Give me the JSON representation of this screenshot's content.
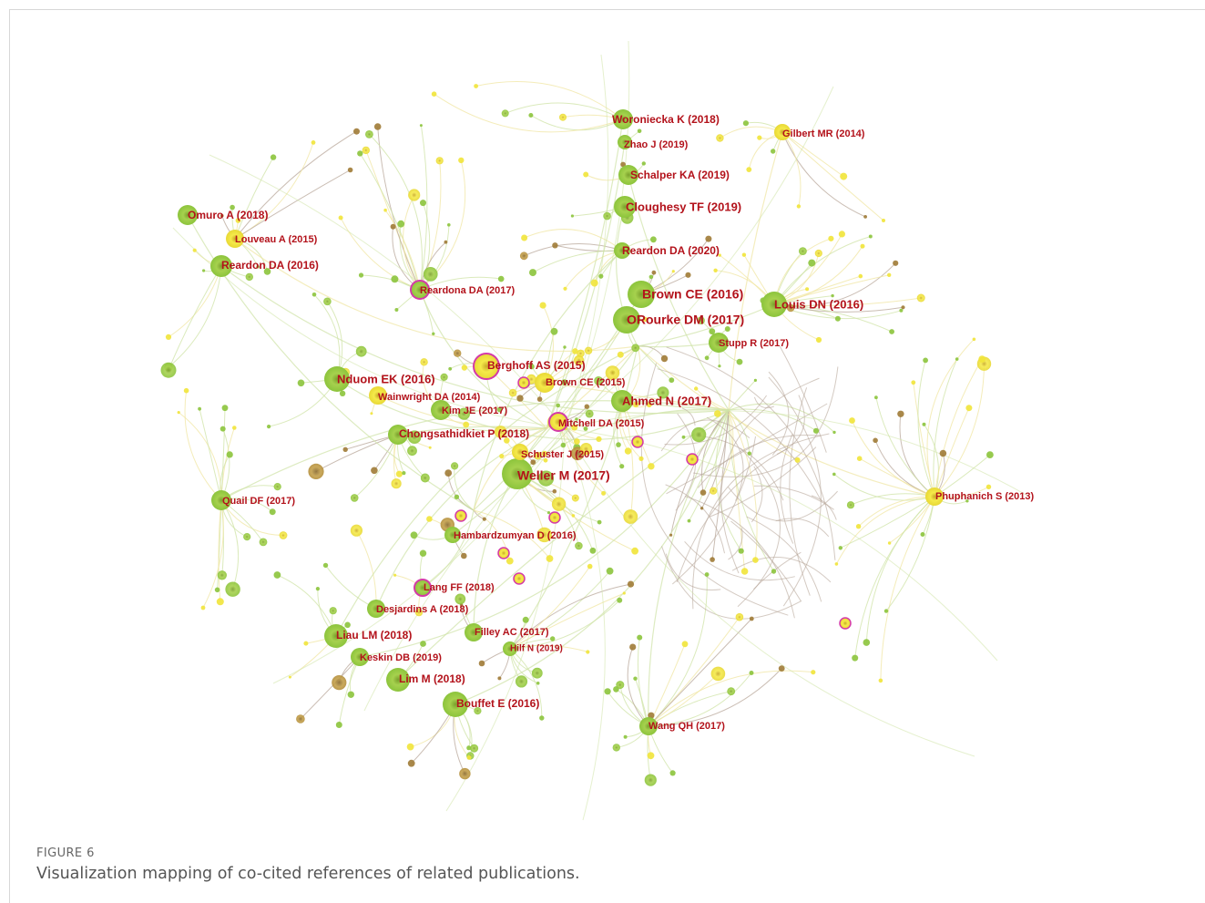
{
  "figure": {
    "label": "FIGURE 6",
    "caption": "Visualization mapping of co-cited references of related publications."
  },
  "colors": {
    "label": "#b3121b",
    "green": "#8cc43c",
    "yellow": "#f1e43a",
    "brown": "#a07b36",
    "magenta": "#d43aa7",
    "edge_green": "#cfe3a6",
    "edge_yellow": "#f0e6a2",
    "edge_brown": "#b8a79a"
  },
  "nodes": [
    {
      "id": "weller_2017",
      "label": "Weller M (2017)",
      "color": "green"
    },
    {
      "id": "brown_ce_2016",
      "label": "Brown CE (2016)",
      "color": "green"
    },
    {
      "id": "orourke_2017",
      "label": "ORourke DM (2017)",
      "color": "green"
    },
    {
      "id": "louis_2016",
      "label": "Louis DN (2016)",
      "color": "green"
    },
    {
      "id": "woroniecka_2018",
      "label": "Woroniecka K (2018)",
      "color": "green"
    },
    {
      "id": "zhao_2019",
      "label": "Zhao J (2019)",
      "color": "green"
    },
    {
      "id": "gilbert_2014",
      "label": "Gilbert MR (2014)",
      "color": "yellow"
    },
    {
      "id": "schalper_2019",
      "label": "Schalper KA (2019)",
      "color": "green"
    },
    {
      "id": "cloughesy_2019",
      "label": "Cloughesy TF (2019)",
      "color": "green"
    },
    {
      "id": "reardon_2020",
      "label": "Reardon DA (2020)",
      "color": "green"
    },
    {
      "id": "omuro_2018",
      "label": "Omuro A (2018)",
      "color": "green"
    },
    {
      "id": "louveau_2015",
      "label": "Louveau A (2015)",
      "color": "yellow"
    },
    {
      "id": "reardon_2016",
      "label": "Reardon DA (2016)",
      "color": "green"
    },
    {
      "id": "reardona_2017",
      "label": "Reardona DA (2017)",
      "color": "green"
    },
    {
      "id": "stupp_2017",
      "label": "Stupp R (2017)",
      "color": "green"
    },
    {
      "id": "berghoff_2015",
      "label": "Berghoff AS (2015)",
      "color": "yellow"
    },
    {
      "id": "brown_ce_2015",
      "label": "Brown CE (2015)",
      "color": "yellow"
    },
    {
      "id": "nduom_2016",
      "label": "Nduom EK (2016)",
      "color": "green"
    },
    {
      "id": "wainwright_2014",
      "label": "Wainwright DA (2014)",
      "color": "yellow"
    },
    {
      "id": "kim_2017",
      "label": "Kim JE (2017)",
      "color": "green"
    },
    {
      "id": "ahmed_2017",
      "label": "Ahmed N (2017)",
      "color": "green"
    },
    {
      "id": "mitchell_2015",
      "label": "Mitchell DA (2015)",
      "color": "yellow"
    },
    {
      "id": "chongsathidkiet_2018",
      "label": "Chongsathidkiet P (2018)",
      "color": "green"
    },
    {
      "id": "schuster_2015",
      "label": "Schuster J (2015)",
      "color": "yellow"
    },
    {
      "id": "phuphanich_2013",
      "label": "Phuphanich S (2013)",
      "color": "yellow"
    },
    {
      "id": "quail_2017",
      "label": "Quail DF (2017)",
      "color": "green"
    },
    {
      "id": "hambardzumyan_2016",
      "label": "Hambardzumyan D (2016)",
      "color": "green"
    },
    {
      "id": "lang_2018",
      "label": "Lang FF (2018)",
      "color": "green"
    },
    {
      "id": "desjardins_2018",
      "label": "Desjardins A (2018)",
      "color": "green"
    },
    {
      "id": "liau_2018",
      "label": "Liau LM (2018)",
      "color": "green"
    },
    {
      "id": "filley_2017",
      "label": "Filley AC (2017)",
      "color": "green"
    },
    {
      "id": "hilf_2019",
      "label": "Hilf N (2019)",
      "color": "green"
    },
    {
      "id": "keskin_2019",
      "label": "Keskin DB (2019)",
      "color": "green"
    },
    {
      "id": "lim_2018",
      "label": "Lim M (2018)",
      "color": "green"
    },
    {
      "id": "bouffet_2016",
      "label": "Bouffet E (2016)",
      "color": "green"
    },
    {
      "id": "wang_2017",
      "label": "Wang QH (2017)",
      "color": "green"
    }
  ]
}
